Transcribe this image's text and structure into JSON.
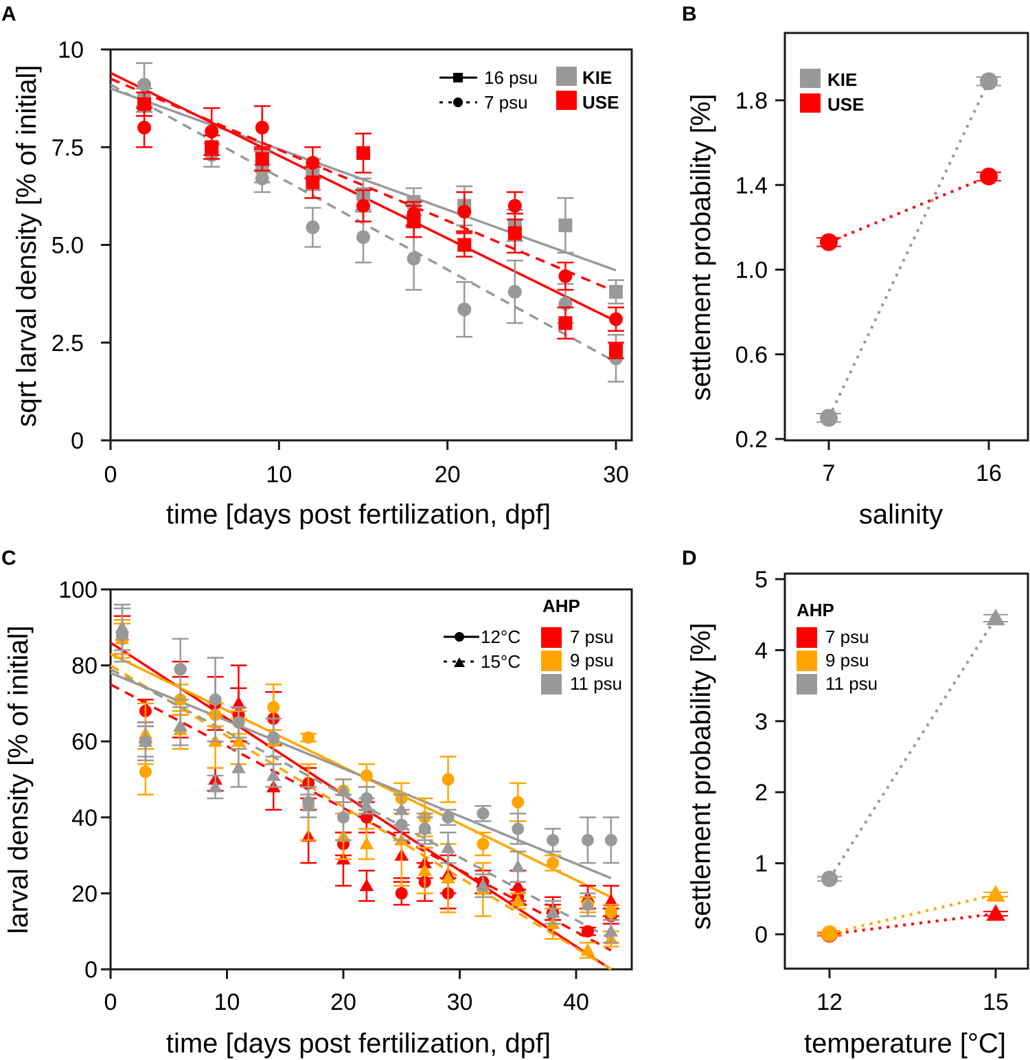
{
  "colors": {
    "KIE": "#999999",
    "USE": "#ff0000",
    "psu7": "#ff0000",
    "psu9": "#ffa500",
    "psu11": "#999999"
  },
  "chart_data": [
    {
      "panel": "A",
      "type": "scatter",
      "xlabel": "time [days post fertilization, dpf]",
      "ylabel": "sqrt larval density [% of initial]",
      "xlim": [
        0,
        31
      ],
      "ylim": [
        0,
        10
      ],
      "xticks": [
        "0",
        "10",
        "20",
        "30"
      ],
      "xtick_values": [
        0,
        10,
        20,
        30
      ],
      "yticks": [
        "0",
        "2.5",
        "5.0",
        "7.5",
        "10"
      ],
      "ytick_values": [
        0,
        2.5,
        5,
        7.5,
        10
      ],
      "legend": {
        "line_entries": [
          {
            "label": "16 psu",
            "style": "solid",
            "marker": "square"
          },
          {
            "label": "7 psu",
            "style": "dashed",
            "marker": "circle"
          }
        ],
        "color_entries": [
          {
            "label": "KIE",
            "color_key": "KIE"
          },
          {
            "label": "USE",
            "color_key": "USE"
          }
        ],
        "position": "top-right"
      },
      "series": [
        {
          "name": "KIE 16 psu",
          "color_key": "KIE",
          "marker": "square",
          "x": [
            2,
            6,
            9,
            12,
            15,
            18,
            21,
            24,
            27,
            30
          ],
          "y": [
            8.7,
            7.5,
            7.0,
            6.8,
            6.3,
            6.1,
            6.0,
            5.5,
            5.5,
            3.8
          ],
          "err": [
            0.3,
            0.3,
            0.4,
            0.4,
            0.4,
            0.35,
            0.5,
            0.4,
            0.7,
            0.3
          ],
          "fit": [
            9.0,
            4.35
          ]
        },
        {
          "name": "KIE 7 psu",
          "color_key": "KIE",
          "marker": "circle",
          "x": [
            2,
            6,
            9,
            12,
            15,
            18,
            21,
            24,
            27,
            30
          ],
          "y": [
            9.1,
            7.3,
            6.7,
            5.45,
            5.2,
            4.65,
            3.35,
            3.8,
            3.5,
            2.1
          ],
          "err": [
            0.55,
            0.3,
            0.35,
            0.5,
            0.65,
            0.8,
            0.7,
            0.8,
            0.5,
            0.6
          ],
          "fit": [
            9.1,
            2.0
          ]
        },
        {
          "name": "USE 16 psu",
          "color_key": "USE",
          "marker": "square",
          "x": [
            2,
            6,
            9,
            12,
            15,
            18,
            21,
            24,
            27,
            30
          ],
          "y": [
            8.6,
            7.5,
            7.2,
            6.6,
            7.35,
            5.6,
            5.0,
            5.3,
            3.0,
            2.3
          ],
          "err": [
            0.3,
            0.3,
            0.3,
            0.4,
            0.5,
            0.4,
            0.3,
            0.5,
            0.4,
            0.2
          ],
          "fit": [
            9.4,
            3.05
          ]
        },
        {
          "name": "USE 7 psu",
          "color_key": "USE",
          "marker": "circle",
          "x": [
            2,
            6,
            9,
            12,
            15,
            18,
            21,
            24,
            27,
            30
          ],
          "y": [
            8.0,
            7.9,
            8.0,
            7.1,
            6.0,
            5.8,
            5.85,
            6.0,
            4.2,
            3.1
          ],
          "err": [
            0.5,
            0.6,
            0.55,
            0.4,
            0.4,
            0.3,
            0.5,
            0.35,
            0.35,
            0.3
          ],
          "fit": [
            9.25,
            3.8
          ]
        }
      ]
    },
    {
      "panel": "B",
      "type": "line",
      "xlabel": "salinity",
      "ylabel": "settlement probability [%]",
      "categories": [
        "7",
        "16"
      ],
      "ylim": [
        0.2,
        2.0
      ],
      "yticks": [
        "0.2",
        "0.6",
        "1.0",
        "1.4",
        "1.8"
      ],
      "ytick_values": [
        0.2,
        0.6,
        1.0,
        1.4,
        1.8
      ],
      "legend": {
        "entries": [
          {
            "label": "KIE",
            "color_key": "KIE"
          },
          {
            "label": "USE",
            "color_key": "USE"
          }
        ],
        "position": "top-left"
      },
      "series": [
        {
          "name": "KIE",
          "color_key": "KIE",
          "values": [
            0.3,
            1.89
          ],
          "err": [
            0.02,
            0.02
          ]
        },
        {
          "name": "USE",
          "color_key": "USE",
          "values": [
            1.13,
            1.44
          ],
          "err": [
            0.02,
            0.02
          ]
        }
      ]
    },
    {
      "panel": "C",
      "type": "scatter",
      "xlabel": "time [days post fertilization, dpf]",
      "ylabel": "larval density [% of initial]",
      "xlim": [
        0,
        45
      ],
      "ylim": [
        0,
        100
      ],
      "xticks": [
        "0",
        "10",
        "20",
        "30",
        "40"
      ],
      "xtick_values": [
        0,
        10,
        20,
        30,
        40
      ],
      "yticks": [
        "0",
        "20",
        "40",
        "60",
        "80",
        "100"
      ],
      "ytick_values": [
        0,
        20,
        40,
        60,
        80,
        100
      ],
      "legend": {
        "title": "AHP",
        "line_entries": [
          {
            "label": "12°C",
            "style": "solid",
            "marker": "circle"
          },
          {
            "label": "15°C",
            "style": "dashed",
            "marker": "triangle"
          }
        ],
        "color_entries": [
          {
            "label": "7 psu",
            "color_key": "psu7"
          },
          {
            "label": "9 psu",
            "color_key": "psu9"
          },
          {
            "label": "11 psu",
            "color_key": "psu11"
          }
        ],
        "position": "top-right"
      },
      "series": [
        {
          "name": "7 psu 12°C",
          "color_key": "psu7",
          "marker": "circle",
          "x": [
            1,
            3,
            6,
            9,
            11,
            14,
            17,
            20,
            22,
            25,
            27,
            29,
            32,
            35,
            38,
            41,
            43
          ],
          "y": [
            88,
            68,
            79,
            70,
            67,
            66,
            49,
            33,
            40,
            20,
            23,
            20,
            23,
            19,
            15,
            10,
            14
          ],
          "err": [
            5,
            3,
            2,
            7,
            7,
            7,
            4,
            3,
            4,
            3,
            5,
            4,
            3,
            2,
            2,
            1,
            2
          ],
          "fit": [
            86,
            0
          ]
        },
        {
          "name": "7 psu 15°C",
          "color_key": "psu7",
          "marker": "triangle",
          "x": [
            1,
            3,
            6,
            9,
            11,
            14,
            17,
            20,
            22,
            25,
            27,
            29,
            32,
            35,
            38,
            41,
            43
          ],
          "y": [
            88,
            61,
            64,
            50,
            70,
            48,
            35,
            29,
            22,
            30,
            28,
            25,
            23,
            22,
            16,
            19,
            18
          ],
          "err": [
            5,
            3,
            3,
            3,
            10,
            6,
            7,
            7,
            4,
            6,
            4,
            5,
            3,
            4,
            3,
            3,
            4
          ],
          "fit": [
            75,
            5
          ]
        },
        {
          "name": "9 psu 12°C",
          "color_key": "psu9",
          "marker": "circle",
          "x": [
            1,
            3,
            6,
            9,
            11,
            14,
            17,
            20,
            22,
            25,
            27,
            29,
            32,
            35,
            38,
            41,
            43
          ],
          "y": [
            87,
            52,
            71,
            67,
            65,
            69,
            61,
            47,
            51,
            45,
            40,
            50,
            33,
            44,
            28,
            17,
            15
          ],
          "err": [
            4,
            6,
            4,
            3,
            3,
            6,
            1,
            3,
            3,
            4,
            5,
            6,
            3,
            5,
            2,
            2,
            2
          ],
          "fit": [
            83,
            19
          ]
        },
        {
          "name": "9 psu 15°C",
          "color_key": "psu9",
          "marker": "triangle",
          "x": [
            1,
            3,
            6,
            9,
            11,
            14,
            17,
            20,
            22,
            25,
            27,
            29,
            32,
            35,
            38,
            41,
            43
          ],
          "y": [
            87,
            62,
            63,
            60,
            60,
            60,
            44,
            35,
            33,
            34,
            26,
            24,
            21,
            18,
            12,
            5,
            8
          ],
          "err": [
            5,
            8,
            5,
            7,
            6,
            6,
            10,
            6,
            4,
            12,
            6,
            9,
            7,
            2,
            4,
            2,
            2
          ],
          "fit": [
            80,
            0
          ]
        },
        {
          "name": "11 psu 12°C",
          "color_key": "psu11",
          "marker": "circle",
          "x": [
            1,
            3,
            6,
            9,
            11,
            14,
            17,
            20,
            22,
            25,
            27,
            29,
            32,
            35,
            38,
            41,
            43
          ],
          "y": [
            88,
            60,
            79,
            71,
            65,
            61,
            44,
            40,
            45,
            38,
            37,
            40,
            41,
            37,
            34,
            34,
            34
          ],
          "err": [
            7,
            5,
            8,
            11,
            4,
            5,
            4,
            6,
            3,
            4,
            4,
            2,
            2,
            4,
            3,
            6,
            6
          ],
          "fit": [
            78,
            24
          ]
        },
        {
          "name": "11 psu 15°C",
          "color_key": "psu11",
          "marker": "triangle",
          "x": [
            1,
            3,
            6,
            9,
            11,
            14,
            17,
            20,
            22,
            25,
            27,
            29,
            32,
            35,
            38,
            41,
            43
          ],
          "y": [
            90,
            60,
            64,
            48,
            53,
            51,
            43,
            47,
            43,
            42,
            37,
            32,
            22,
            27,
            15,
            17,
            10
          ],
          "err": [
            6,
            4,
            5,
            3,
            5,
            3,
            3,
            3,
            2,
            4,
            3,
            4,
            3,
            4,
            3,
            3,
            3
          ],
          "fit": [
            79,
            8
          ]
        }
      ]
    },
    {
      "panel": "D",
      "type": "line",
      "xlabel": "temperature [°C]",
      "ylabel": "settlement probability [%]",
      "categories": [
        "12",
        "15"
      ],
      "ylim": [
        -0.5,
        5.2
      ],
      "yticks": [
        "0",
        "1",
        "2",
        "3",
        "4",
        "5"
      ],
      "ytick_values": [
        0,
        1,
        2,
        3,
        4,
        5
      ],
      "legend": {
        "title": "AHP",
        "entries": [
          {
            "label": "7 psu",
            "color_key": "psu7"
          },
          {
            "label": "9 psu",
            "color_key": "psu9"
          },
          {
            "label": "11 psu",
            "color_key": "psu11"
          }
        ],
        "position": "top-left"
      },
      "series": [
        {
          "name": "7 psu",
          "color_key": "psu7",
          "values": [
            0.0,
            0.29
          ],
          "err": [
            0.02,
            0.03
          ],
          "markers": [
            "circle",
            "triangle"
          ]
        },
        {
          "name": "9 psu",
          "color_key": "psu9",
          "values": [
            0.01,
            0.56
          ],
          "err": [
            0.02,
            0.03
          ],
          "markers": [
            "circle",
            "triangle"
          ]
        },
        {
          "name": "11 psu",
          "color_key": "psu11",
          "values": [
            0.78,
            4.45
          ],
          "err": [
            0.03,
            0.05
          ],
          "markers": [
            "circle",
            "triangle"
          ]
        }
      ]
    }
  ],
  "panels": {
    "A": {
      "letter": "A"
    },
    "B": {
      "letter": "B"
    },
    "C": {
      "letter": "C"
    },
    "D": {
      "letter": "D"
    }
  }
}
